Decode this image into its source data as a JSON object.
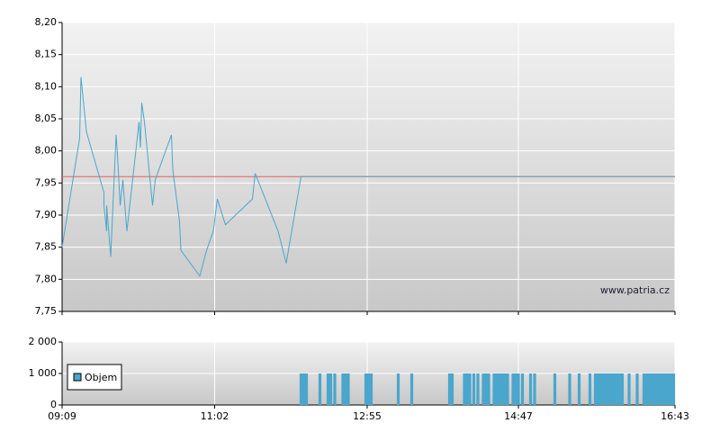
{
  "chart_data": [
    {
      "type": "line",
      "x": [
        "09:09",
        "09:22",
        "09:23",
        "09:27",
        "09:40",
        "09:40",
        "09:42",
        "09:42",
        "09:45",
        "09:49",
        "09:50",
        "09:52",
        "09:54",
        "09:57",
        "10:06",
        "10:07",
        "10:08",
        "10:10",
        "10:16",
        "10:18",
        "10:30",
        "10:31",
        "10:36",
        "10:37",
        "10:51",
        "10:56",
        "11:01",
        "11:04",
        "11:10",
        "11:30",
        "11:32",
        "11:49",
        "11:55",
        "12:06"
      ],
      "values": [
        7.85,
        8.02,
        8.115,
        8.03,
        7.935,
        7.915,
        7.875,
        7.915,
        7.835,
        8.025,
        7.995,
        7.915,
        7.955,
        7.875,
        8.045,
        8.005,
        8.075,
        8.045,
        7.915,
        7.955,
        8.025,
        7.97,
        7.89,
        7.845,
        7.805,
        7.845,
        7.875,
        7.925,
        7.885,
        7.925,
        7.965,
        7.875,
        7.825,
        7.96
      ],
      "color": "#4aa6cc",
      "reference_line": {
        "value": 7.96,
        "color": "#e06060"
      },
      "xlim": [
        "09:09",
        "16:43"
      ],
      "xticks": [
        "09:09",
        "11:02",
        "12:55",
        "14:47",
        "16:43"
      ],
      "ylim": [
        7.75,
        8.2
      ],
      "yticks": [
        {
          "value": 7.75,
          "label": "7,75"
        },
        {
          "value": 7.8,
          "label": "7,80"
        },
        {
          "value": 7.85,
          "label": "7,85"
        },
        {
          "value": 7.9,
          "label": "7,90"
        },
        {
          "value": 7.95,
          "label": "7,95"
        },
        {
          "value": 8.0,
          "label": "8,00"
        },
        {
          "value": 8.05,
          "label": "8,05"
        },
        {
          "value": 8.1,
          "label": "8,10"
        },
        {
          "value": 8.15,
          "label": "8,15"
        },
        {
          "value": 8.2,
          "label": "8,20"
        }
      ],
      "grid": true,
      "annotation": "www.patria.cz"
    },
    {
      "type": "bar",
      "x": [
        "12:06",
        "12:08",
        "12:10",
        "12:20",
        "12:26",
        "12:28",
        "12:31",
        "12:37",
        "12:39",
        "12:41",
        "12:54",
        "12:56",
        "12:58",
        "13:18",
        "13:28",
        "13:56",
        "13:58",
        "14:07",
        "14:09",
        "14:11",
        "14:14",
        "14:17",
        "14:21",
        "14:23",
        "14:25",
        "14:29",
        "14:31",
        "14:33",
        "14:35",
        "14:37",
        "14:39",
        "14:43",
        "14:45",
        "14:47",
        "14:50",
        "14:56",
        "14:59",
        "15:14",
        "15:25",
        "15:32",
        "15:40",
        "15:44",
        "15:46",
        "15:48",
        "15:50",
        "15:52",
        "15:54",
        "15:56",
        "15:58",
        "16:00",
        "16:02",
        "16:04",
        "16:09",
        "16:15",
        "16:20",
        "16:22",
        "16:24",
        "16:26",
        "16:28",
        "16:30",
        "16:32",
        "16:34",
        "16:36",
        "16:38",
        "16:40",
        "16:42"
      ],
      "series": [
        {
          "name": "Objem",
          "color": "#4aa6cc",
          "values": [
            1000,
            1000,
            1000,
            1000,
            1000,
            1000,
            1000,
            1000,
            1000,
            1000,
            1000,
            1000,
            1000,
            1000,
            1000,
            1000,
            1000,
            1000,
            1000,
            1000,
            1000,
            1000,
            1000,
            1000,
            1000,
            1000,
            1000,
            1000,
            1000,
            1000,
            1000,
            1000,
            1000,
            1000,
            1000,
            1000,
            1000,
            1000,
            1000,
            1000,
            1000,
            1000,
            1000,
            1000,
            1000,
            1000,
            1000,
            1000,
            1000,
            1000,
            1000,
            1000,
            1000,
            1000,
            1000,
            1000,
            1000,
            1000,
            1000,
            1000,
            1000,
            1000,
            1000,
            1000,
            1000,
            1000
          ]
        }
      ],
      "xlim": [
        "09:09",
        "16:43"
      ],
      "xticks": [
        "09:09",
        "11:02",
        "12:55",
        "14:47",
        "16:43"
      ],
      "ylim": [
        0,
        2000
      ],
      "yticks": [
        0,
        {
          "value": 1000,
          "label": "1 000"
        },
        {
          "value": 2000,
          "label": "2 000"
        }
      ],
      "grid": true
    }
  ]
}
